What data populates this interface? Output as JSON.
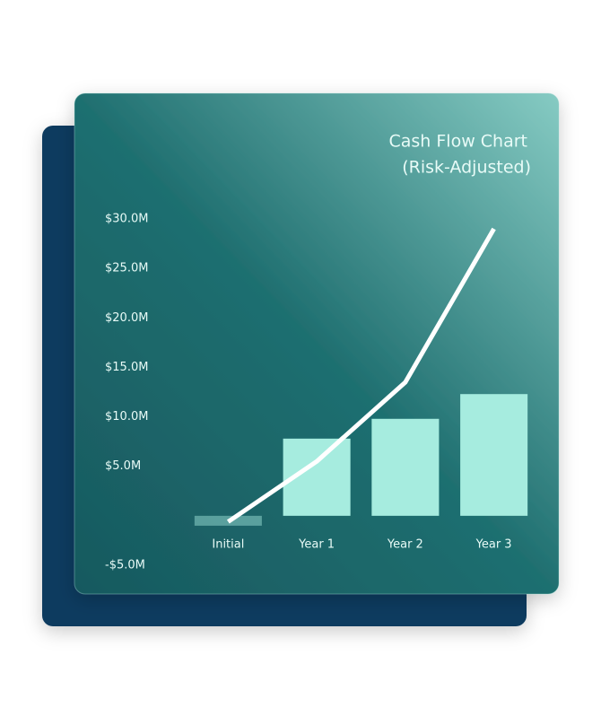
{
  "chart_data": {
    "type": "bar",
    "title": "Cash Flow Chart",
    "subtitle": "(Risk-Adjusted)",
    "categories": [
      "Initial",
      "Year 1",
      "Year 2",
      "Year 3"
    ],
    "series": [
      {
        "kind": "bar",
        "color": "#a6ecdf",
        "values": [
          -1,
          7.8,
          9.8,
          12.3
        ]
      },
      {
        "kind": "line",
        "color": "#ffffff",
        "values": [
          -0.6,
          5.5,
          13.5,
          29
        ]
      }
    ],
    "ylim": [
      -5,
      30
    ],
    "yticks": [
      {
        "value": 30,
        "label": "$30.0M"
      },
      {
        "value": 25,
        "label": "$25.0M"
      },
      {
        "value": 20,
        "label": "$20.0M"
      },
      {
        "value": 15,
        "label": "$15.0M"
      },
      {
        "value": 10,
        "label": "$10.0M"
      },
      {
        "value": 5,
        "label": "$5.0M"
      },
      {
        "value": -5,
        "label": "-$5.0M"
      }
    ]
  }
}
